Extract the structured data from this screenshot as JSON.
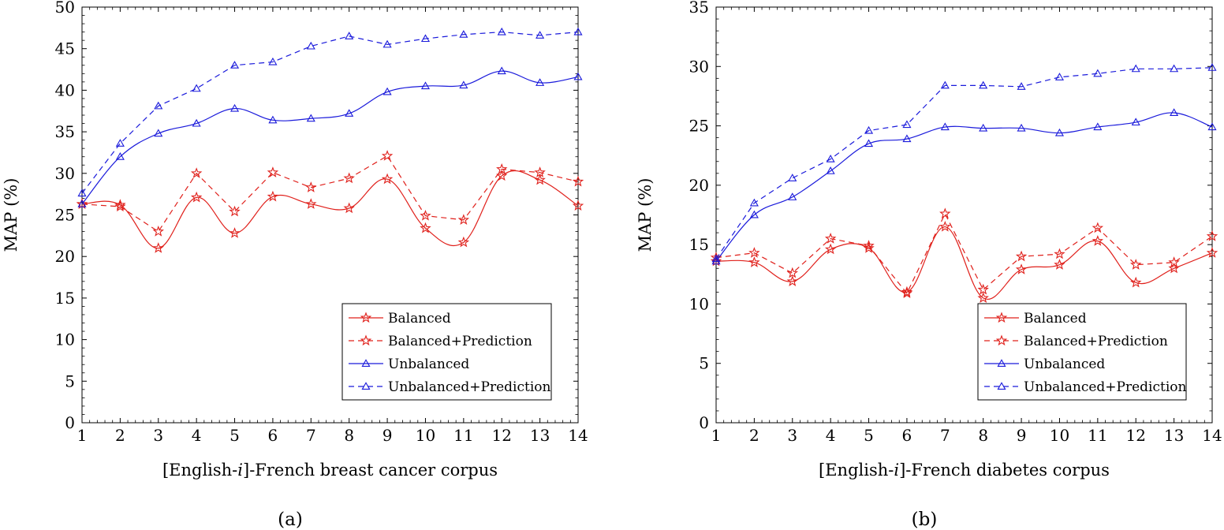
{
  "chart_data": [
    {
      "type": "line",
      "caption": "(a)",
      "xlabel_prefix": "[English-",
      "xlabel_italic": "i",
      "xlabel_suffix": "]-French breast cancer corpus",
      "ylabel": "MAP (%)",
      "x": [
        1,
        2,
        3,
        4,
        5,
        6,
        7,
        8,
        9,
        10,
        11,
        12,
        13,
        14
      ],
      "xlim": [
        1,
        14
      ],
      "ylim": [
        0,
        50
      ],
      "yticks": [
        0,
        5,
        10,
        15,
        20,
        25,
        30,
        35,
        40,
        45,
        50
      ],
      "legend_position": "bottom-right",
      "series": [
        {
          "name": "Balanced",
          "color": "#e0201b",
          "dashed": false,
          "marker": "star",
          "smooth": true,
          "values": [
            26.3,
            26.2,
            21.0,
            27.1,
            22.8,
            27.2,
            26.3,
            25.8,
            29.3,
            23.4,
            21.7,
            29.7,
            29.2,
            26.1
          ]
        },
        {
          "name": "Balanced+Prediction",
          "color": "#e0201b",
          "dashed": true,
          "marker": "star",
          "smooth": false,
          "values": [
            26.3,
            26.0,
            23.0,
            30.0,
            25.4,
            30.1,
            28.3,
            29.4,
            32.1,
            24.9,
            24.4,
            30.5,
            30.1,
            29.0
          ]
        },
        {
          "name": "Unbalanced",
          "color": "#1a1adb",
          "dashed": false,
          "marker": "triangle",
          "smooth": true,
          "values": [
            26.3,
            32.0,
            34.8,
            36.0,
            37.8,
            36.4,
            36.6,
            37.2,
            39.8,
            40.5,
            40.6,
            42.3,
            40.9,
            41.6
          ]
        },
        {
          "name": "Unbalanced+Prediction",
          "color": "#1a1adb",
          "dashed": true,
          "marker": "triangle",
          "smooth": false,
          "values": [
            27.6,
            33.6,
            38.1,
            40.2,
            43.0,
            43.4,
            45.3,
            46.5,
            45.5,
            46.2,
            46.7,
            47.0,
            46.6,
            47.0
          ]
        }
      ]
    },
    {
      "type": "line",
      "caption": "(b)",
      "xlabel_prefix": "[English-",
      "xlabel_italic": "i",
      "xlabel_suffix": "]-French diabetes corpus",
      "ylabel": "MAP (%)",
      "x": [
        1,
        2,
        3,
        4,
        5,
        6,
        7,
        8,
        9,
        10,
        11,
        12,
        13,
        14
      ],
      "xlim": [
        1,
        14
      ],
      "ylim": [
        0,
        35
      ],
      "yticks": [
        0,
        5,
        10,
        15,
        20,
        25,
        30,
        35
      ],
      "legend_position": "bottom-right",
      "series": [
        {
          "name": "Balanced",
          "color": "#e0201b",
          "dashed": false,
          "marker": "star",
          "smooth": true,
          "values": [
            13.6,
            13.5,
            11.9,
            14.6,
            14.7,
            11.0,
            16.5,
            10.5,
            12.9,
            13.3,
            15.3,
            11.8,
            13.0,
            14.3
          ]
        },
        {
          "name": "Balanced+Prediction",
          "color": "#e0201b",
          "dashed": true,
          "marker": "star",
          "smooth": false,
          "values": [
            13.9,
            14.3,
            12.6,
            15.5,
            14.9,
            10.9,
            17.6,
            11.2,
            14.0,
            14.2,
            16.4,
            13.3,
            13.5,
            15.7
          ]
        },
        {
          "name": "Unbalanced",
          "color": "#1a1adb",
          "dashed": false,
          "marker": "triangle",
          "smooth": true,
          "values": [
            13.6,
            17.5,
            19.0,
            21.2,
            23.5,
            23.9,
            24.9,
            24.8,
            24.8,
            24.4,
            24.9,
            25.3,
            26.1,
            24.9
          ]
        },
        {
          "name": "Unbalanced+Prediction",
          "color": "#1a1adb",
          "dashed": true,
          "marker": "triangle",
          "smooth": false,
          "values": [
            13.8,
            18.5,
            20.6,
            22.2,
            24.6,
            25.1,
            28.4,
            28.4,
            28.3,
            29.1,
            29.4,
            29.8,
            29.8,
            29.9
          ]
        }
      ]
    }
  ]
}
